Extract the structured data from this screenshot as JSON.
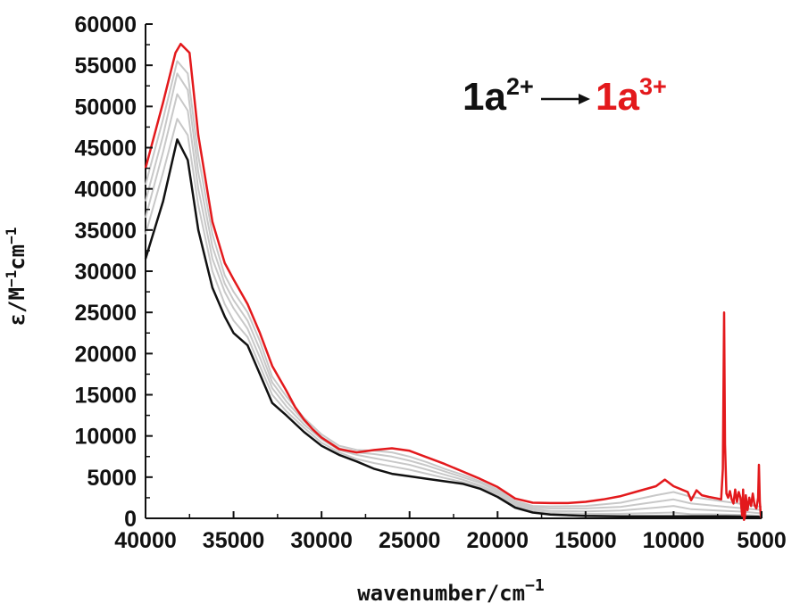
{
  "chart_data": {
    "type": "line",
    "xlabel": "wavenumber/cm",
    "xlabel_sup": "−1",
    "ylabel_parts": [
      "ε/M",
      "−1",
      "cm",
      "−1"
    ],
    "xlim": [
      40000,
      5000
    ],
    "x_reversed": true,
    "ylim": [
      0,
      60000
    ],
    "xticks": [
      40000,
      35000,
      30000,
      25000,
      20000,
      15000,
      10000,
      5000
    ],
    "yticks": [
      0,
      5000,
      10000,
      15000,
      20000,
      25000,
      30000,
      35000,
      40000,
      45000,
      50000,
      55000,
      60000
    ],
    "grid": false,
    "annotation": {
      "start_base": "1a",
      "start_sup": "2+",
      "end_base": "1a",
      "end_sup": "3+",
      "start_color": "#111111",
      "end_color": "#e3191c"
    },
    "colors": {
      "start": "#111111",
      "intermediate": "#c8c8c8",
      "end": "#e3191c"
    },
    "series": [
      {
        "role": "start",
        "points": [
          [
            40000,
            31500
          ],
          [
            39000,
            38500
          ],
          [
            38200,
            46000
          ],
          [
            37600,
            43500
          ],
          [
            37000,
            35000
          ],
          [
            36200,
            28000
          ],
          [
            35500,
            24500
          ],
          [
            35000,
            22500
          ],
          [
            34200,
            21000
          ],
          [
            33500,
            17500
          ],
          [
            32800,
            14000
          ],
          [
            32000,
            12500
          ],
          [
            31000,
            10500
          ],
          [
            30000,
            8800
          ],
          [
            29000,
            7700
          ],
          [
            28000,
            6900
          ],
          [
            27000,
            6000
          ],
          [
            26000,
            5400
          ],
          [
            25000,
            5100
          ],
          [
            24000,
            4800
          ],
          [
            23000,
            4500
          ],
          [
            22000,
            4200
          ],
          [
            21000,
            3600
          ],
          [
            20000,
            2600
          ],
          [
            19000,
            1300
          ],
          [
            18000,
            700
          ],
          [
            17000,
            450
          ],
          [
            15000,
            300
          ],
          [
            13000,
            250
          ],
          [
            10000,
            250
          ],
          [
            7000,
            250
          ],
          [
            5200,
            200
          ],
          [
            5000,
            100
          ]
        ]
      },
      {
        "role": "intermediate",
        "points": [
          [
            40000,
            34500
          ],
          [
            39000,
            42000
          ],
          [
            38200,
            48500
          ],
          [
            37600,
            46500
          ],
          [
            37000,
            38000
          ],
          [
            36200,
            30000
          ],
          [
            35500,
            26000
          ],
          [
            35000,
            24000
          ],
          [
            34200,
            22000
          ],
          [
            33500,
            18500
          ],
          [
            32800,
            15000
          ],
          [
            32000,
            13000
          ],
          [
            31000,
            11000
          ],
          [
            30000,
            9200
          ],
          [
            29000,
            8000
          ],
          [
            28000,
            7200
          ],
          [
            27000,
            6700
          ],
          [
            26000,
            6300
          ],
          [
            25000,
            5900
          ],
          [
            24000,
            5400
          ],
          [
            23000,
            4900
          ],
          [
            22000,
            4400
          ],
          [
            21000,
            3800
          ],
          [
            20000,
            2900
          ],
          [
            19000,
            1500
          ],
          [
            18000,
            900
          ],
          [
            17000,
            650
          ],
          [
            15000,
            550
          ],
          [
            13000,
            550
          ],
          [
            11000,
            650
          ],
          [
            10000,
            700
          ],
          [
            9000,
            500
          ],
          [
            8000,
            500
          ],
          [
            7000,
            450
          ],
          [
            6000,
            400
          ],
          [
            5000,
            300
          ]
        ]
      },
      {
        "role": "intermediate",
        "points": [
          [
            40000,
            36500
          ],
          [
            39000,
            44500
          ],
          [
            38200,
            51500
          ],
          [
            37600,
            49500
          ],
          [
            37000,
            40000
          ],
          [
            36200,
            31500
          ],
          [
            35500,
            27500
          ],
          [
            35000,
            25500
          ],
          [
            34200,
            23000
          ],
          [
            33500,
            19500
          ],
          [
            32800,
            15800
          ],
          [
            32000,
            13600
          ],
          [
            31000,
            11400
          ],
          [
            30000,
            9600
          ],
          [
            29000,
            8300
          ],
          [
            28000,
            7700
          ],
          [
            27000,
            7300
          ],
          [
            26000,
            6900
          ],
          [
            25000,
            6500
          ],
          [
            24000,
            5900
          ],
          [
            23000,
            5300
          ],
          [
            22000,
            4700
          ],
          [
            21000,
            4000
          ],
          [
            20000,
            3100
          ],
          [
            19000,
            1700
          ],
          [
            18000,
            1100
          ],
          [
            17000,
            900
          ],
          [
            15000,
            850
          ],
          [
            13000,
            950
          ],
          [
            11000,
            1300
          ],
          [
            10000,
            1500
          ],
          [
            9000,
            1100
          ],
          [
            8000,
            1000
          ],
          [
            7000,
            900
          ],
          [
            6000,
            800
          ],
          [
            5000,
            600
          ]
        ]
      },
      {
        "role": "intermediate",
        "points": [
          [
            40000,
            38500
          ],
          [
            39000,
            46500
          ],
          [
            38200,
            54000
          ],
          [
            37600,
            52000
          ],
          [
            37000,
            42000
          ],
          [
            36200,
            33000
          ],
          [
            35500,
            28500
          ],
          [
            35000,
            26500
          ],
          [
            34200,
            24000
          ],
          [
            33500,
            20500
          ],
          [
            32800,
            16500
          ],
          [
            32000,
            14200
          ],
          [
            31000,
            11800
          ],
          [
            30000,
            9900
          ],
          [
            29000,
            8500
          ],
          [
            28000,
            8000
          ],
          [
            27000,
            7800
          ],
          [
            26000,
            7500
          ],
          [
            25000,
            7000
          ],
          [
            24000,
            6400
          ],
          [
            23000,
            5700
          ],
          [
            22000,
            5000
          ],
          [
            21000,
            4300
          ],
          [
            20000,
            3300
          ],
          [
            19000,
            1900
          ],
          [
            18000,
            1300
          ],
          [
            17000,
            1200
          ],
          [
            15000,
            1200
          ],
          [
            13000,
            1400
          ],
          [
            11000,
            2000
          ],
          [
            10000,
            2300
          ],
          [
            9000,
            1800
          ],
          [
            8000,
            1600
          ],
          [
            7000,
            1400
          ],
          [
            6000,
            1200
          ],
          [
            5000,
            1000
          ]
        ]
      },
      {
        "role": "intermediate",
        "points": [
          [
            40000,
            40500
          ],
          [
            39000,
            48500
          ],
          [
            38200,
            55500
          ],
          [
            37600,
            54000
          ],
          [
            37000,
            44000
          ],
          [
            36200,
            34500
          ],
          [
            35500,
            29500
          ],
          [
            35000,
            27500
          ],
          [
            34200,
            25000
          ],
          [
            33500,
            21500
          ],
          [
            32800,
            17200
          ],
          [
            32000,
            14800
          ],
          [
            31000,
            12200
          ],
          [
            30000,
            10200
          ],
          [
            29000,
            8800
          ],
          [
            28000,
            8300
          ],
          [
            27000,
            8200
          ],
          [
            26000,
            8000
          ],
          [
            25000,
            7500
          ],
          [
            24000,
            6800
          ],
          [
            23000,
            6000
          ],
          [
            22000,
            5300
          ],
          [
            21000,
            4500
          ],
          [
            20000,
            3500
          ],
          [
            19000,
            2100
          ],
          [
            18000,
            1500
          ],
          [
            17000,
            1450
          ],
          [
            15000,
            1500
          ],
          [
            13000,
            1900
          ],
          [
            11000,
            2800
          ],
          [
            10000,
            3200
          ],
          [
            9000,
            2600
          ],
          [
            8000,
            2300
          ],
          [
            7000,
            2000
          ],
          [
            6000,
            1700
          ],
          [
            5000,
            1400
          ]
        ]
      },
      {
        "role": "end",
        "points": [
          [
            40000,
            42500
          ],
          [
            39000,
            50500
          ],
          [
            38300,
            56500
          ],
          [
            38000,
            57600
          ],
          [
            37500,
            56500
          ],
          [
            37000,
            46500
          ],
          [
            36200,
            36000
          ],
          [
            35500,
            31000
          ],
          [
            35000,
            29000
          ],
          [
            34200,
            26000
          ],
          [
            33500,
            22500
          ],
          [
            32800,
            18500
          ],
          [
            32000,
            15500
          ],
          [
            31500,
            13500
          ],
          [
            31000,
            12000
          ],
          [
            30500,
            10800
          ],
          [
            30000,
            9800
          ],
          [
            29000,
            8400
          ],
          [
            28000,
            8000
          ],
          [
            27000,
            8300
          ],
          [
            26000,
            8500
          ],
          [
            25000,
            8200
          ],
          [
            24000,
            7400
          ],
          [
            23000,
            6600
          ],
          [
            22000,
            5700
          ],
          [
            21000,
            4800
          ],
          [
            20000,
            3800
          ],
          [
            19000,
            2400
          ],
          [
            18000,
            1900
          ],
          [
            17000,
            1850
          ],
          [
            16000,
            1850
          ],
          [
            15000,
            2000
          ],
          [
            14000,
            2300
          ],
          [
            13000,
            2700
          ],
          [
            12000,
            3300
          ],
          [
            11000,
            3900
          ],
          [
            10500,
            4700
          ],
          [
            10000,
            3900
          ],
          [
            9200,
            3200
          ],
          [
            9000,
            2200
          ],
          [
            8700,
            3400
          ],
          [
            8400,
            2800
          ],
          [
            8000,
            2600
          ],
          [
            7500,
            2400
          ],
          [
            7300,
            2300
          ],
          [
            7200,
            6000
          ],
          [
            7130,
            25000
          ],
          [
            7080,
            9000
          ],
          [
            7000,
            3000
          ],
          [
            6900,
            2500
          ],
          [
            6800,
            3300
          ],
          [
            6700,
            2300
          ],
          [
            6600,
            1800
          ],
          [
            6500,
            3500
          ],
          [
            6400,
            2000
          ],
          [
            6300,
            3200
          ],
          [
            6200,
            2500
          ],
          [
            6100,
            300
          ],
          [
            6050,
            3500
          ],
          [
            6000,
            -200
          ],
          [
            5950,
            200
          ],
          [
            5900,
            2800
          ],
          [
            5800,
            1000
          ],
          [
            5700,
            2500
          ],
          [
            5600,
            1500
          ],
          [
            5500,
            3000
          ],
          [
            5400,
            1600
          ],
          [
            5300,
            1200
          ],
          [
            5200,
            2500
          ],
          [
            5150,
            6500
          ],
          [
            5100,
            2000
          ],
          [
            5050,
            500
          ],
          [
            5000,
            0
          ]
        ]
      }
    ]
  }
}
